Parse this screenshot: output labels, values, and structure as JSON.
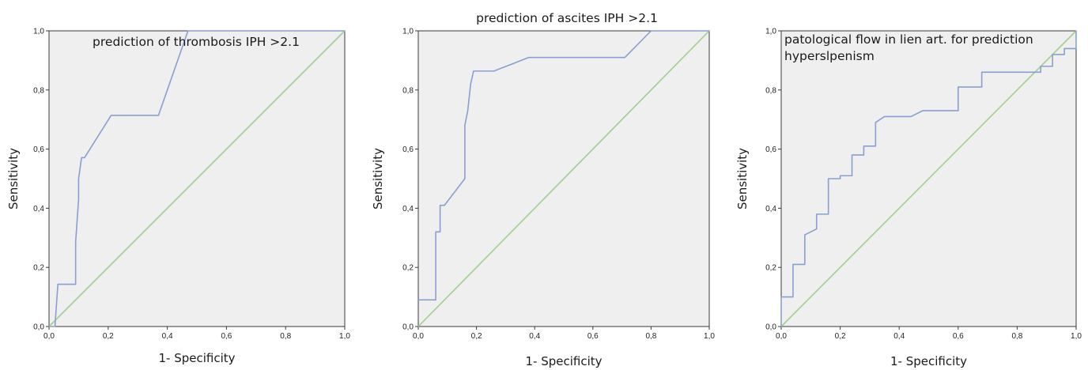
{
  "chart_data": [
    {
      "type": "line",
      "title": "prediction of thrombosis IPH >2.1",
      "xlabel": "1- Specificity",
      "ylabel": "Sensitivity",
      "xlim": [
        0,
        1
      ],
      "ylim": [
        0,
        1
      ],
      "x_tick_labels": [
        "0,0",
        "0,2",
        "0,4",
        "0,6",
        "0,8",
        "1,0"
      ],
      "y_tick_labels": [
        "0,0",
        "0,2",
        "0,4",
        "0,6",
        "0,8",
        "1,0"
      ],
      "grid": false,
      "colors": {
        "roc": "#8a9fd1",
        "reference": "#9ed08f",
        "plot_background": "#eeefee"
      },
      "series": [
        {
          "x": [
            0,
            0.02,
            0.03,
            0.09,
            0.09,
            0.1,
            0.1,
            0.11,
            0.12,
            0.21,
            0.37,
            0.47,
            1.0
          ],
          "y": [
            0,
            0,
            0.143,
            0.143,
            0.286,
            0.43,
            0.5,
            0.571,
            0.571,
            0.714,
            0.714,
            1.0,
            1.0
          ]
        },
        {
          "x": [
            0,
            1
          ],
          "y": [
            0,
            1
          ]
        }
      ]
    },
    {
      "type": "line",
      "title": "prediction of ascites IPH >2.1",
      "xlabel": "1- Specificity",
      "ylabel": "Sensitivity",
      "xlim": [
        0,
        1
      ],
      "ylim": [
        0,
        1
      ],
      "x_tick_labels": [
        "0,0",
        "0,2",
        "0,4",
        "0,6",
        "0,8",
        "1,0"
      ],
      "y_tick_labels": [
        "0,0",
        "0,2",
        "0,4",
        "0,6",
        "0,8",
        "1,0"
      ],
      "grid": false,
      "colors": {
        "roc": "#8a9fd1",
        "reference": "#9ed08f",
        "plot_background": "#eeefee"
      },
      "series": [
        {
          "x": [
            0,
            0.06,
            0.06,
            0.075,
            0.075,
            0.09,
            0.16,
            0.16,
            0.17,
            0.18,
            0.19,
            0.26,
            0.38,
            0.71,
            0.8,
            1.0
          ],
          "y": [
            0.09,
            0.09,
            0.32,
            0.32,
            0.41,
            0.41,
            0.5,
            0.68,
            0.73,
            0.82,
            0.864,
            0.864,
            0.91,
            0.91,
            1.0,
            1.0
          ]
        },
        {
          "x": [
            0,
            1
          ],
          "y": [
            0,
            1
          ]
        }
      ]
    },
    {
      "type": "line",
      "title": "patological flow in lien art. for prediction hyperslpenism",
      "xlabel": "1- Specificity",
      "ylabel": "Sensitivity",
      "xlim": [
        0,
        1
      ],
      "ylim": [
        0,
        1
      ],
      "x_tick_labels": [
        "0,0",
        "0,2",
        "0,4",
        "0,6",
        "0,8",
        "1,0"
      ],
      "y_tick_labels": [
        "0,0",
        "0,2",
        "0,4",
        "0,6",
        "0,8",
        "1,0"
      ],
      "grid": false,
      "colors": {
        "roc": "#8a9fd1",
        "reference": "#9ed08f",
        "plot_background": "#eeefee"
      },
      "series": [
        {
          "x": [
            0,
            0,
            0.04,
            0.04,
            0.08,
            0.08,
            0.12,
            0.12,
            0.16,
            0.16,
            0.2,
            0.2,
            0.24,
            0.24,
            0.28,
            0.28,
            0.32,
            0.32,
            0.35,
            0.44,
            0.48,
            0.6,
            0.6,
            0.68,
            0.68,
            0.88,
            0.88,
            0.92,
            0.92,
            0.96,
            0.96,
            1.0,
            1.0
          ],
          "y": [
            0,
            0.1,
            0.1,
            0.21,
            0.21,
            0.31,
            0.33,
            0.38,
            0.38,
            0.5,
            0.5,
            0.51,
            0.51,
            0.58,
            0.58,
            0.61,
            0.61,
            0.69,
            0.71,
            0.71,
            0.73,
            0.73,
            0.81,
            0.81,
            0.86,
            0.86,
            0.88,
            0.88,
            0.92,
            0.92,
            0.94,
            0.94,
            1.0
          ]
        },
        {
          "x": [
            0,
            1
          ],
          "y": [
            0,
            1
          ]
        }
      ]
    }
  ]
}
